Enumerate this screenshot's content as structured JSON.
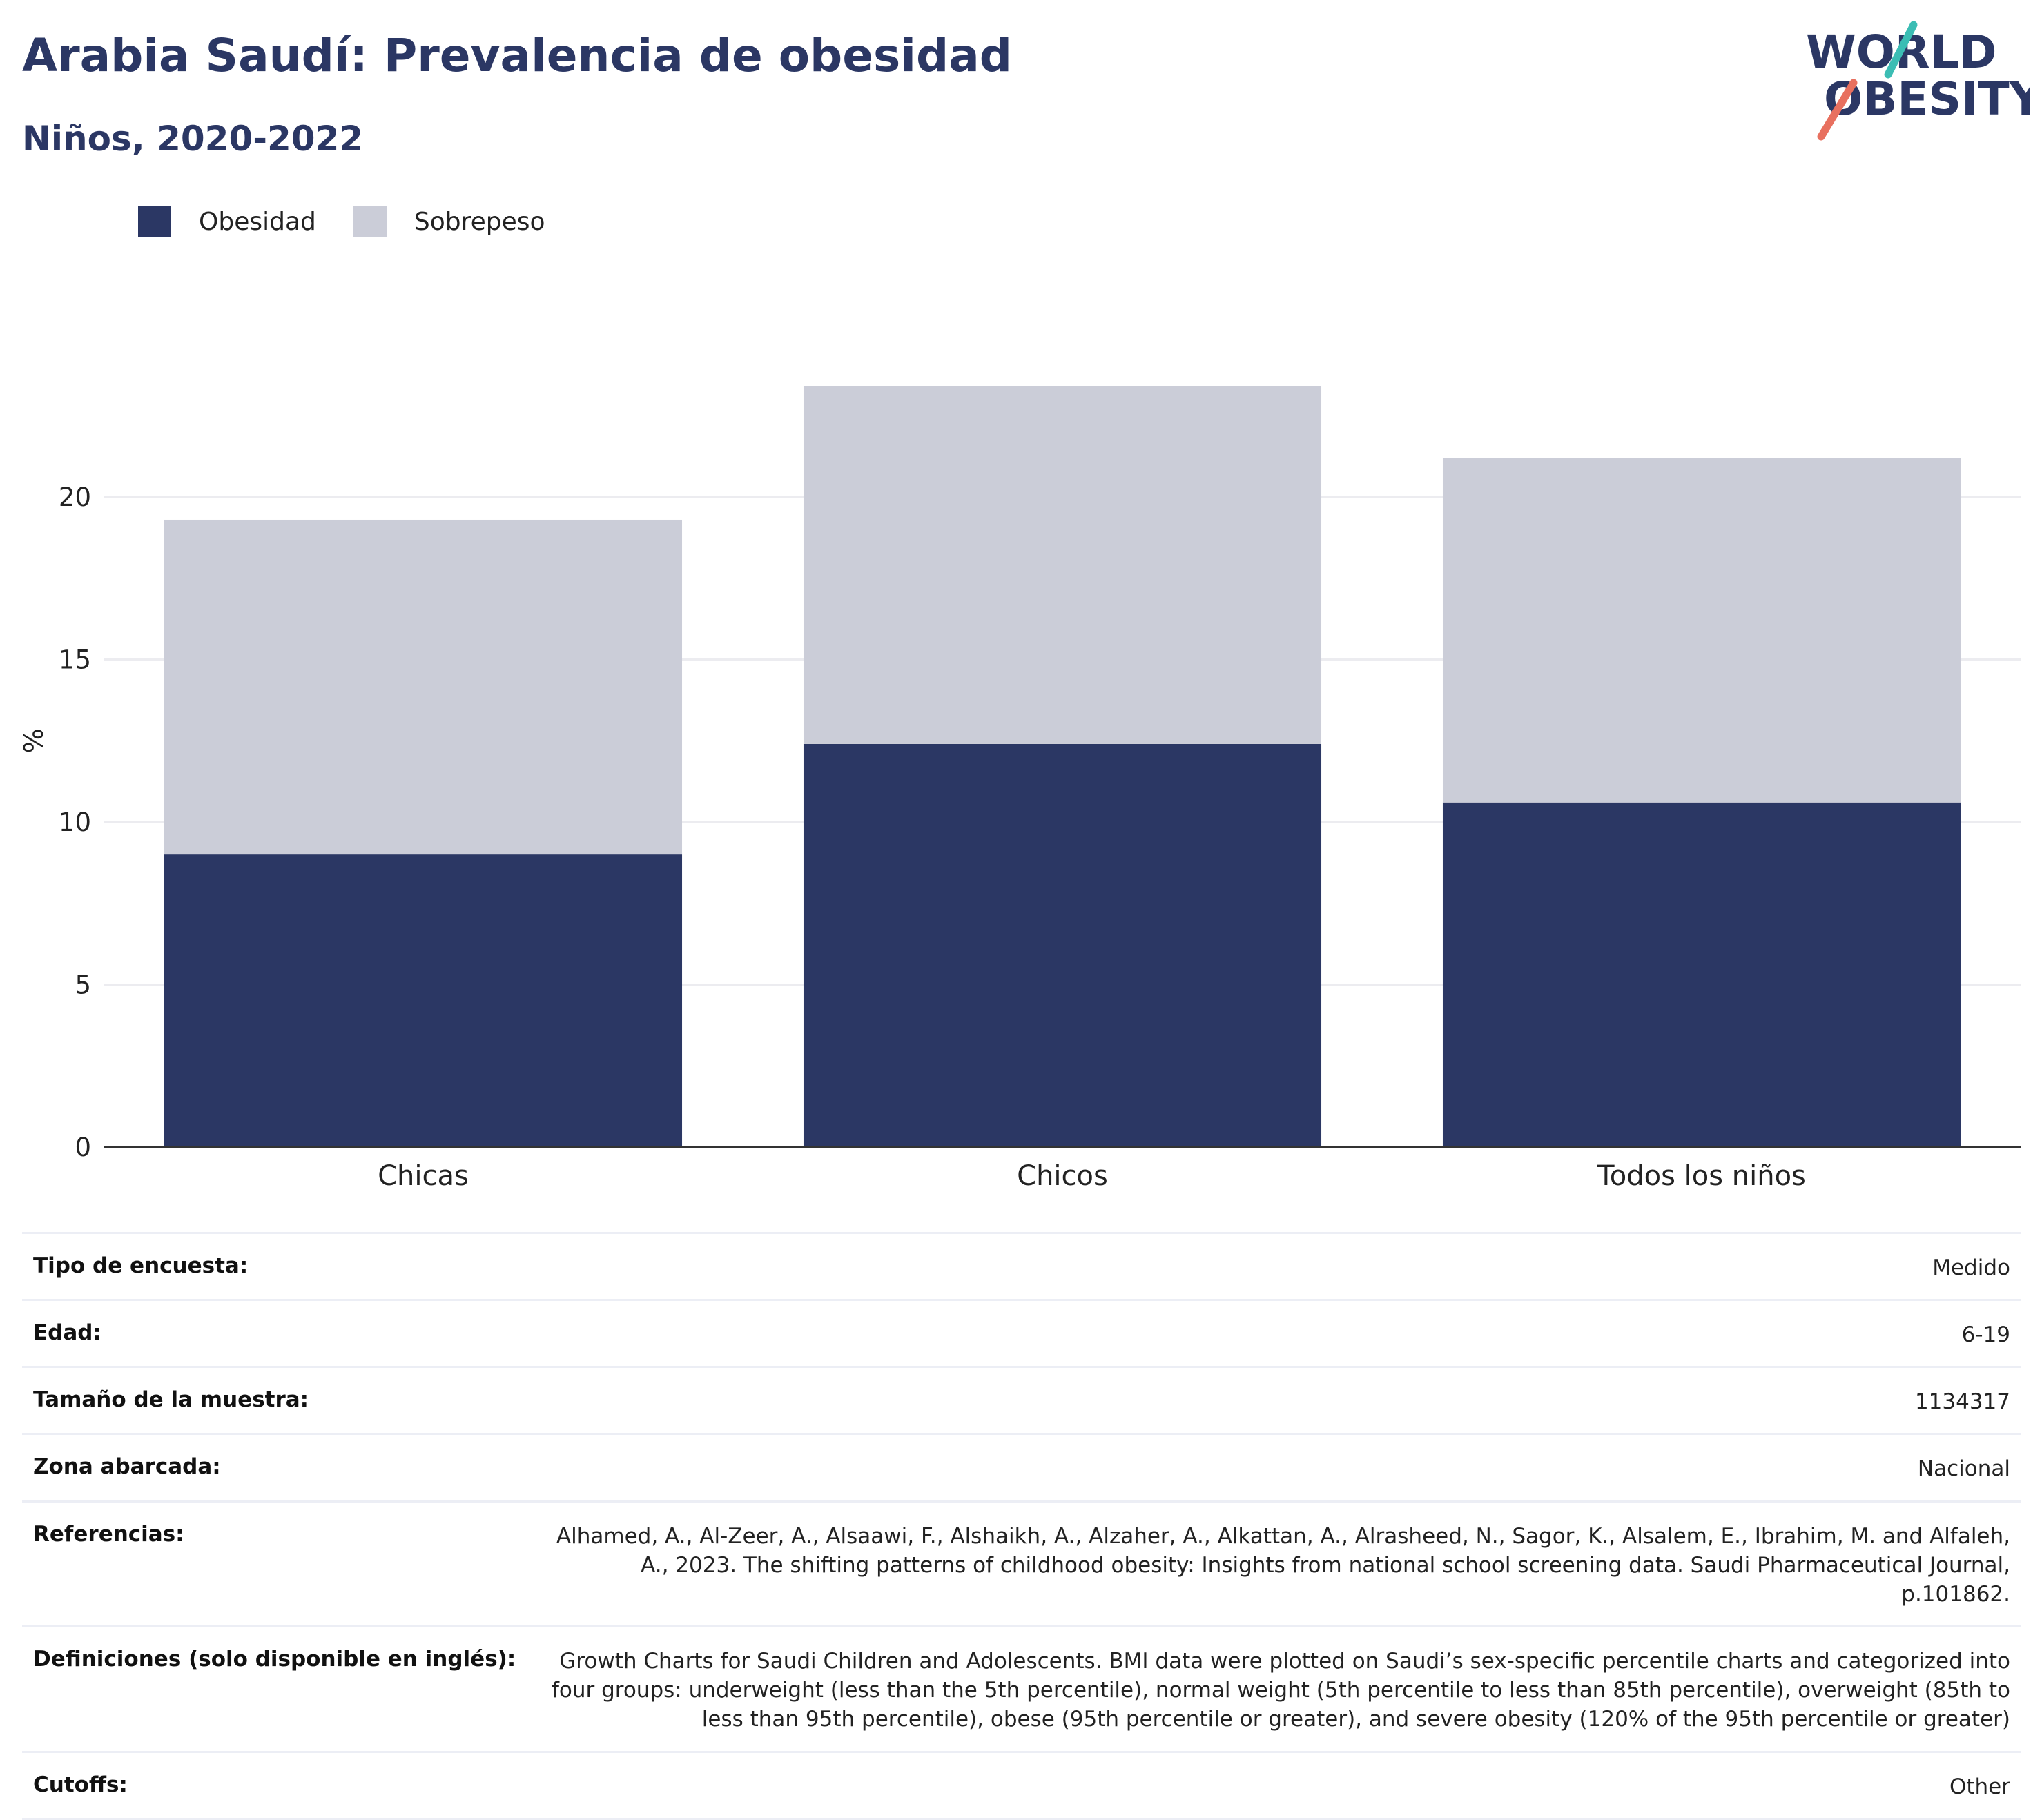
{
  "header": {
    "title": "Arabia Saudí: Prevalencia de obesidad",
    "subtitle": "Niños, 2020-2022",
    "logo": {
      "line1": "WORLD",
      "line2": "OBESITY",
      "icon": "world-obesity-logo"
    }
  },
  "colors": {
    "obesity": "#2b3764",
    "overweight": "#cbcdd8",
    "accent_teal": "#3bbdb4",
    "accent_coral": "#e8705f"
  },
  "legend": [
    {
      "label": "Obesidad",
      "color": "#2b3764"
    },
    {
      "label": "Sobrepeso",
      "color": "#cbcdd8"
    }
  ],
  "chart_data": {
    "type": "bar",
    "stacked": true,
    "categories": [
      "Chicas",
      "Chicos",
      "Todos los niños"
    ],
    "series": [
      {
        "name": "Obesidad",
        "values": [
          9.0,
          12.4,
          10.6
        ]
      },
      {
        "name": "Sobrepeso",
        "values": [
          10.3,
          11.0,
          10.6
        ]
      }
    ],
    "ylabel": "%",
    "xlabel": "",
    "ylim": [
      0,
      25
    ],
    "yticks": [
      0,
      5,
      10,
      15,
      20
    ],
    "grid": true,
    "legend_position": "top-left"
  },
  "info": [
    {
      "label": "Tipo de encuesta:",
      "value": "Medido"
    },
    {
      "label": "Edad:",
      "value": "6-19"
    },
    {
      "label": "Tamaño de la muestra:",
      "value": "1134317"
    },
    {
      "label": "Zona abarcada:",
      "value": "Nacional"
    },
    {
      "label": "Referencias:",
      "value": "Alhamed, A., Al-Zeer, A., Alsaawi, F., Alshaikh, A., Alzaher, A., Alkattan, A., Alrasheed, N., Sagor, K., Alsalem, E., Ibrahim, M. and Alfaleh, A., 2023. The shifting patterns of childhood obesity: Insights from national school screening data. Saudi Pharmaceutical Journal, p.101862."
    },
    {
      "label": "Definiciones (solo disponible en inglés):",
      "value": "Growth Charts for Saudi Children and Adolescents. BMI data were plotted on Saudi’s sex-specific percentile charts and categorized into four groups: underweight (less than the 5th percentile), normal weight (5th percentile to less than 85th percentile), overweight (85th to less than 95th percentile), obese (95th percentile or greater), and severe obesity (120% of the 95th percentile or greater)"
    },
    {
      "label": "Cutoffs:",
      "value": "Other"
    }
  ]
}
